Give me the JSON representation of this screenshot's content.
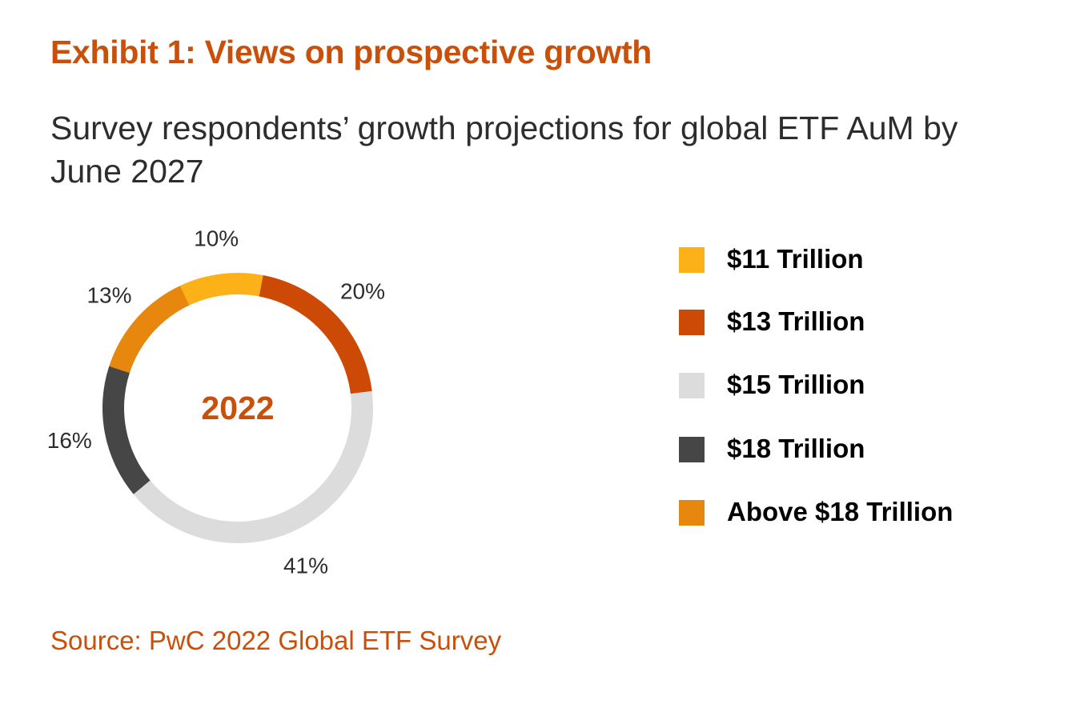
{
  "title": "Exhibit 1: Views on prospective growth",
  "subtitle": "Survey respondents’ growth projections for global ETF AuM by June 2027",
  "source": "Source: PwC 2022 Global ETF Survey",
  "chart_data": {
    "type": "pie",
    "style": "donut",
    "center_label": "2022",
    "categories": [
      "$11 Trillion",
      "$13 Trillion",
      "$15 Trillion",
      "$18 Trillion",
      "Above $18 Trillion"
    ],
    "values": [
      10,
      20,
      41,
      16,
      13
    ],
    "data_labels": [
      "10%",
      "20%",
      "41%",
      "16%",
      "13%"
    ],
    "colors": [
      "#fbb117",
      "#cc4a05",
      "#dcdcdc",
      "#464646",
      "#e8870e"
    ],
    "legend_position": "right"
  }
}
